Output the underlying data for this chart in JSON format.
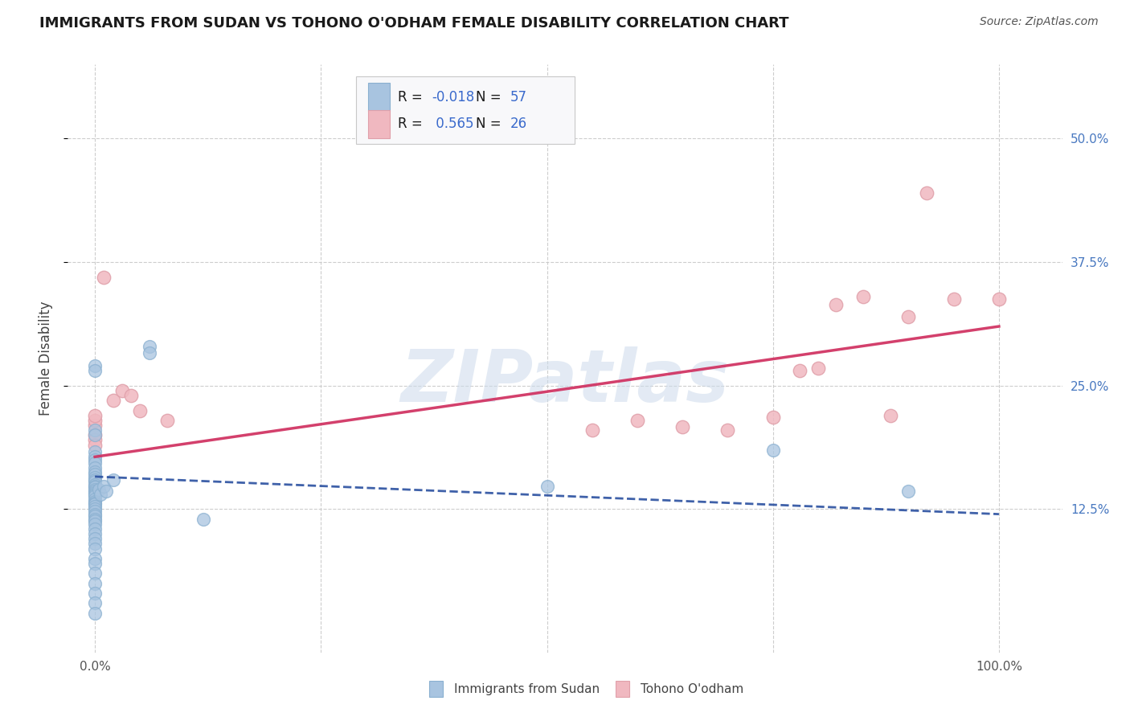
{
  "title": "IMMIGRANTS FROM SUDAN VS TOHONO O'ODHAM FEMALE DISABILITY CORRELATION CHART",
  "source": "Source: ZipAtlas.com",
  "ylabel": "Female Disability",
  "watermark": "ZIPatlas",
  "legend_blue_label": "Immigrants from Sudan",
  "legend_pink_label": "Tohono O'odham",
  "R_blue": -0.018,
  "N_blue": 57,
  "R_pink": 0.565,
  "N_pink": 26,
  "y_ticks": [
    0.125,
    0.25,
    0.375,
    0.5
  ],
  "y_tick_labels": [
    "12.5%",
    "25.0%",
    "37.5%",
    "50.0%"
  ],
  "x_ticks": [
    0.0,
    0.25,
    0.5,
    0.75,
    1.0
  ],
  "xlim": [
    -0.03,
    1.07
  ],
  "ylim": [
    -0.02,
    0.575
  ],
  "background_color": "#ffffff",
  "grid_color": "#c8c8c8",
  "blue_fill": "#a8c4e0",
  "blue_edge": "#8ab0d0",
  "pink_fill": "#f0b8c0",
  "pink_edge": "#e0a0aa",
  "blue_line_color": "#2a50a0",
  "pink_line_color": "#d03060",
  "right_tick_color": "#4878c0",
  "title_color": "#1a1a1a",
  "source_color": "#555555",
  "legend_text_color": "#1a1a1a",
  "legend_val_color": "#3a6acc",
  "blue_scatter": [
    [
      0.0,
      0.27
    ],
    [
      0.0,
      0.265
    ],
    [
      0.0,
      0.205
    ],
    [
      0.0,
      0.2
    ],
    [
      0.0,
      0.183
    ],
    [
      0.0,
      0.178
    ],
    [
      0.0,
      0.175
    ],
    [
      0.0,
      0.172
    ],
    [
      0.0,
      0.167
    ],
    [
      0.0,
      0.163
    ],
    [
      0.0,
      0.16
    ],
    [
      0.0,
      0.157
    ],
    [
      0.0,
      0.155
    ],
    [
      0.0,
      0.153
    ],
    [
      0.0,
      0.15
    ],
    [
      0.0,
      0.148
    ],
    [
      0.0,
      0.147
    ],
    [
      0.0,
      0.145
    ],
    [
      0.0,
      0.143
    ],
    [
      0.0,
      0.142
    ],
    [
      0.0,
      0.14
    ],
    [
      0.0,
      0.138
    ],
    [
      0.0,
      0.135
    ],
    [
      0.0,
      0.133
    ],
    [
      0.0,
      0.131
    ],
    [
      0.0,
      0.13
    ],
    [
      0.0,
      0.128
    ],
    [
      0.0,
      0.125
    ],
    [
      0.0,
      0.123
    ],
    [
      0.0,
      0.12
    ],
    [
      0.0,
      0.118
    ],
    [
      0.0,
      0.115
    ],
    [
      0.0,
      0.113
    ],
    [
      0.0,
      0.11
    ],
    [
      0.0,
      0.105
    ],
    [
      0.0,
      0.1
    ],
    [
      0.0,
      0.095
    ],
    [
      0.0,
      0.09
    ],
    [
      0.0,
      0.085
    ],
    [
      0.0,
      0.075
    ],
    [
      0.0,
      0.07
    ],
    [
      0.0,
      0.06
    ],
    [
      0.0,
      0.05
    ],
    [
      0.0,
      0.04
    ],
    [
      0.0,
      0.03
    ],
    [
      0.0,
      0.02
    ],
    [
      0.004,
      0.145
    ],
    [
      0.006,
      0.14
    ],
    [
      0.01,
      0.148
    ],
    [
      0.012,
      0.143
    ],
    [
      0.02,
      0.155
    ],
    [
      0.06,
      0.29
    ],
    [
      0.06,
      0.283
    ],
    [
      0.12,
      0.115
    ],
    [
      0.5,
      0.148
    ],
    [
      0.75,
      0.185
    ],
    [
      0.9,
      0.143
    ]
  ],
  "pink_scatter": [
    [
      0.0,
      0.21
    ],
    [
      0.0,
      0.2
    ],
    [
      0.0,
      0.215
    ],
    [
      0.0,
      0.195
    ],
    [
      0.0,
      0.22
    ],
    [
      0.0,
      0.19
    ],
    [
      0.01,
      0.36
    ],
    [
      0.02,
      0.235
    ],
    [
      0.03,
      0.245
    ],
    [
      0.04,
      0.24
    ],
    [
      0.05,
      0.225
    ],
    [
      0.08,
      0.215
    ],
    [
      0.55,
      0.205
    ],
    [
      0.6,
      0.215
    ],
    [
      0.7,
      0.205
    ],
    [
      0.75,
      0.218
    ],
    [
      0.8,
      0.268
    ],
    [
      0.85,
      0.34
    ],
    [
      0.9,
      0.32
    ],
    [
      0.92,
      0.445
    ],
    [
      0.95,
      0.338
    ],
    [
      1.0,
      0.338
    ],
    [
      0.78,
      0.265
    ],
    [
      0.82,
      0.332
    ],
    [
      0.88,
      0.22
    ],
    [
      0.65,
      0.208
    ]
  ],
  "blue_line": [
    0.0,
    0.158,
    1.0,
    0.12
  ],
  "pink_line": [
    0.0,
    0.178,
    1.0,
    0.31
  ],
  "title_fontsize": 13,
  "source_fontsize": 10,
  "axis_label_fontsize": 12,
  "tick_fontsize": 11
}
